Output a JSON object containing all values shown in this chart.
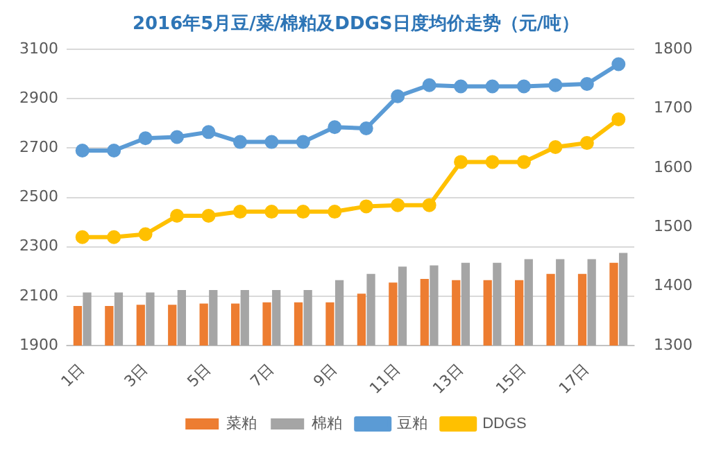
{
  "chart_data": {
    "type": "bar",
    "title": "2016年5月豆/菜/棉粕及DDGS日度均价走势（元/吨）",
    "categories": [
      "1日",
      null,
      "3日",
      null,
      "5日",
      null,
      "7日",
      null,
      "9日",
      null,
      "11日",
      null,
      "13日",
      null,
      "15日",
      null,
      "17日",
      null
    ],
    "series": [
      {
        "name": "菜粕",
        "color": "#ed7d31",
        "values": [
          2060,
          2060,
          2065,
          2065,
          2070,
          2070,
          2075,
          2075,
          2075,
          2110,
          2155,
          2170,
          2165,
          2165,
          2165,
          2190,
          2190,
          2235
        ]
      },
      {
        "name": "棉粕",
        "color": "#a5a5a5",
        "values": [
          2115,
          2115,
          2115,
          2125,
          2125,
          2125,
          2125,
          2125,
          2165,
          2190,
          2220,
          2225,
          2235,
          2235,
          2250,
          2250,
          2250,
          2275
        ]
      },
      {
        "name": "豆粕",
        "type": "line",
        "color": "#5b9bd5",
        "values": [
          2690,
          2690,
          2740,
          2745,
          2765,
          2725,
          2725,
          2725,
          2785,
          2780,
          2910,
          2955,
          2950,
          2950,
          2950,
          2955,
          2960,
          3040
        ]
      },
      {
        "name": "DDGS",
        "type": "line",
        "axis": "y2",
        "color": "#ffc000",
        "values": [
          1483,
          1483,
          1488,
          1519,
          1519,
          1526,
          1526,
          1526,
          1526,
          1535,
          1537,
          1537,
          1610,
          1610,
          1610,
          1635,
          1642,
          1682
        ]
      }
    ],
    "ylim": [
      1900,
      3100
    ],
    "yticks": [
      1900,
      2100,
      2300,
      2500,
      2700,
      2900,
      3100
    ],
    "y2lim": [
      1300,
      1800
    ],
    "y2ticks": [
      1300,
      1400,
      1500,
      1600,
      1700,
      1800
    ],
    "grid": "y",
    "legend": "bottom",
    "marker": "circle",
    "line_style": "solid"
  }
}
